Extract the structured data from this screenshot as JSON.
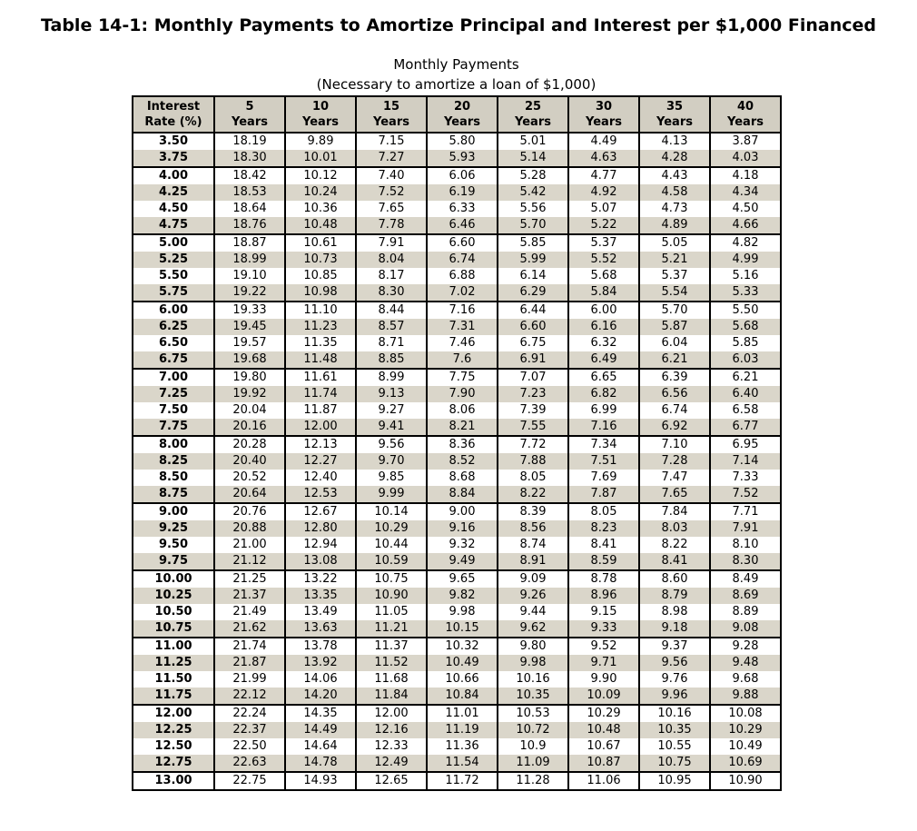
{
  "page_title": "Table 14-1: Monthly Payments to Amortize Principal and Interest per $1,000 Financed",
  "subtitle": {
    "line1": "Monthly Payments",
    "line2": "(Necessary to amortize a loan of $1,000)"
  },
  "table": {
    "colors": {
      "header_bg": "#d2cec2",
      "row_alt_bg": "#dad6ca",
      "border": "#000000"
    },
    "rate_header": [
      "Interest",
      "Rate (%)"
    ],
    "year_headers": [
      [
        "5",
        "Years"
      ],
      [
        "10",
        "Years"
      ],
      [
        "15",
        "Years"
      ],
      [
        "20",
        "Years"
      ],
      [
        "25",
        "Years"
      ],
      [
        "30",
        "Years"
      ],
      [
        "35",
        "Years"
      ],
      [
        "40",
        "Years"
      ]
    ],
    "rows": [
      {
        "rate": "3.50",
        "values": [
          "18.19",
          "9.89",
          "7.15",
          "5.80",
          "5.01",
          "4.49",
          "4.13",
          "3.87"
        ]
      },
      {
        "rate": "3.75",
        "values": [
          "18.30",
          "10.01",
          "7.27",
          "5.93",
          "5.14",
          "4.63",
          "4.28",
          "4.03"
        ]
      },
      {
        "rate": "4.00",
        "values": [
          "18.42",
          "10.12",
          "7.40",
          "6.06",
          "5.28",
          "4.77",
          "4.43",
          "4.18"
        ]
      },
      {
        "rate": "4.25",
        "values": [
          "18.53",
          "10.24",
          "7.52",
          "6.19",
          "5.42",
          "4.92",
          "4.58",
          "4.34"
        ]
      },
      {
        "rate": "4.50",
        "values": [
          "18.64",
          "10.36",
          "7.65",
          "6.33",
          "5.56",
          "5.07",
          "4.73",
          "4.50"
        ]
      },
      {
        "rate": "4.75",
        "values": [
          "18.76",
          "10.48",
          "7.78",
          "6.46",
          "5.70",
          "5.22",
          "4.89",
          "4.66"
        ]
      },
      {
        "rate": "5.00",
        "values": [
          "18.87",
          "10.61",
          "7.91",
          "6.60",
          "5.85",
          "5.37",
          "5.05",
          "4.82"
        ]
      },
      {
        "rate": "5.25",
        "values": [
          "18.99",
          "10.73",
          "8.04",
          "6.74",
          "5.99",
          "5.52",
          "5.21",
          "4.99"
        ]
      },
      {
        "rate": "5.50",
        "values": [
          "19.10",
          "10.85",
          "8.17",
          "6.88",
          "6.14",
          "5.68",
          "5.37",
          "5.16"
        ]
      },
      {
        "rate": "5.75",
        "values": [
          "19.22",
          "10.98",
          "8.30",
          "7.02",
          "6.29",
          "5.84",
          "5.54",
          "5.33"
        ]
      },
      {
        "rate": "6.00",
        "values": [
          "19.33",
          "11.10",
          "8.44",
          "7.16",
          "6.44",
          "6.00",
          "5.70",
          "5.50"
        ]
      },
      {
        "rate": "6.25",
        "values": [
          "19.45",
          "11.23",
          "8.57",
          "7.31",
          "6.60",
          "6.16",
          "5.87",
          "5.68"
        ]
      },
      {
        "rate": "6.50",
        "values": [
          "19.57",
          "11.35",
          "8.71",
          "7.46",
          "6.75",
          "6.32",
          "6.04",
          "5.85"
        ]
      },
      {
        "rate": "6.75",
        "values": [
          "19.68",
          "11.48",
          "8.85",
          "7.6",
          "6.91",
          "6.49",
          "6.21",
          "6.03"
        ]
      },
      {
        "rate": "7.00",
        "values": [
          "19.80",
          "11.61",
          "8.99",
          "7.75",
          "7.07",
          "6.65",
          "6.39",
          "6.21"
        ]
      },
      {
        "rate": "7.25",
        "values": [
          "19.92",
          "11.74",
          "9.13",
          "7.90",
          "7.23",
          "6.82",
          "6.56",
          "6.40"
        ]
      },
      {
        "rate": "7.50",
        "values": [
          "20.04",
          "11.87",
          "9.27",
          "8.06",
          "7.39",
          "6.99",
          "6.74",
          "6.58"
        ]
      },
      {
        "rate": "7.75",
        "values": [
          "20.16",
          "12.00",
          "9.41",
          "8.21",
          "7.55",
          "7.16",
          "6.92",
          "6.77"
        ]
      },
      {
        "rate": "8.00",
        "values": [
          "20.28",
          "12.13",
          "9.56",
          "8.36",
          "7.72",
          "7.34",
          "7.10",
          "6.95"
        ]
      },
      {
        "rate": "8.25",
        "values": [
          "20.40",
          "12.27",
          "9.70",
          "8.52",
          "7.88",
          "7.51",
          "7.28",
          "7.14"
        ]
      },
      {
        "rate": "8.50",
        "values": [
          "20.52",
          "12.40",
          "9.85",
          "8.68",
          "8.05",
          "7.69",
          "7.47",
          "7.33"
        ]
      },
      {
        "rate": "8.75",
        "values": [
          "20.64",
          "12.53",
          "9.99",
          "8.84",
          "8.22",
          "7.87",
          "7.65",
          "7.52"
        ]
      },
      {
        "rate": "9.00",
        "values": [
          "20.76",
          "12.67",
          "10.14",
          "9.00",
          "8.39",
          "8.05",
          "7.84",
          "7.71"
        ]
      },
      {
        "rate": "9.25",
        "values": [
          "20.88",
          "12.80",
          "10.29",
          "9.16",
          "8.56",
          "8.23",
          "8.03",
          "7.91"
        ]
      },
      {
        "rate": "9.50",
        "values": [
          "21.00",
          "12.94",
          "10.44",
          "9.32",
          "8.74",
          "8.41",
          "8.22",
          "8.10"
        ]
      },
      {
        "rate": "9.75",
        "values": [
          "21.12",
          "13.08",
          "10.59",
          "9.49",
          "8.91",
          "8.59",
          "8.41",
          "8.30"
        ]
      },
      {
        "rate": "10.00",
        "values": [
          "21.25",
          "13.22",
          "10.75",
          "9.65",
          "9.09",
          "8.78",
          "8.60",
          "8.49"
        ]
      },
      {
        "rate": "10.25",
        "values": [
          "21.37",
          "13.35",
          "10.90",
          "9.82",
          "9.26",
          "8.96",
          "8.79",
          "8.69"
        ]
      },
      {
        "rate": "10.50",
        "values": [
          "21.49",
          "13.49",
          "11.05",
          "9.98",
          "9.44",
          "9.15",
          "8.98",
          "8.89"
        ]
      },
      {
        "rate": "10.75",
        "values": [
          "21.62",
          "13.63",
          "11.21",
          "10.15",
          "9.62",
          "9.33",
          "9.18",
          "9.08"
        ]
      },
      {
        "rate": "11.00",
        "values": [
          "21.74",
          "13.78",
          "11.37",
          "10.32",
          "9.80",
          "9.52",
          "9.37",
          "9.28"
        ]
      },
      {
        "rate": "11.25",
        "values": [
          "21.87",
          "13.92",
          "11.52",
          "10.49",
          "9.98",
          "9.71",
          "9.56",
          "9.48"
        ]
      },
      {
        "rate": "11.50",
        "values": [
          "21.99",
          "14.06",
          "11.68",
          "10.66",
          "10.16",
          "9.90",
          "9.76",
          "9.68"
        ]
      },
      {
        "rate": "11.75",
        "values": [
          "22.12",
          "14.20",
          "11.84",
          "10.84",
          "10.35",
          "10.09",
          "9.96",
          "9.88"
        ]
      },
      {
        "rate": "12.00",
        "values": [
          "22.24",
          "14.35",
          "12.00",
          "11.01",
          "10.53",
          "10.29",
          "10.16",
          "10.08"
        ]
      },
      {
        "rate": "12.25",
        "values": [
          "22.37",
          "14.49",
          "12.16",
          "11.19",
          "10.72",
          "10.48",
          "10.35",
          "10.29"
        ]
      },
      {
        "rate": "12.50",
        "values": [
          "22.50",
          "14.64",
          "12.33",
          "11.36",
          "10.9",
          "10.67",
          "10.55",
          "10.49"
        ]
      },
      {
        "rate": "12.75",
        "values": [
          "22.63",
          "14.78",
          "12.49",
          "11.54",
          "11.09",
          "10.87",
          "10.75",
          "10.69"
        ]
      },
      {
        "rate": "13.00",
        "values": [
          "22.75",
          "14.93",
          "12.65",
          "11.72",
          "11.28",
          "11.06",
          "10.95",
          "10.90"
        ]
      }
    ]
  }
}
